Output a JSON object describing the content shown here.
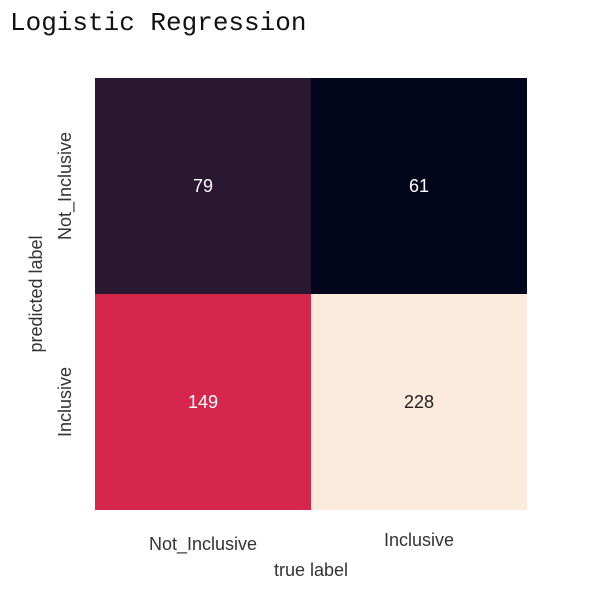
{
  "title": "Logistic Regression",
  "chart_data": {
    "type": "heatmap",
    "title": "Logistic Regression",
    "xlabel": "true label",
    "ylabel": "predicted label",
    "x_categories": [
      "Not_Inclusive",
      "Inclusive"
    ],
    "y_categories": [
      "Not_Inclusive",
      "Inclusive"
    ],
    "values": [
      [
        79,
        61
      ],
      [
        149,
        228
      ]
    ],
    "colorscale": "rocket",
    "colorbar": false,
    "cell_colors": [
      [
        "#2a1833",
        "#03051a"
      ],
      [
        "#d7264c",
        "#faebdd"
      ]
    ],
    "text_colors": [
      [
        "#ffffff",
        "#ffffff"
      ],
      [
        "#ffffff",
        "#222222"
      ]
    ]
  }
}
